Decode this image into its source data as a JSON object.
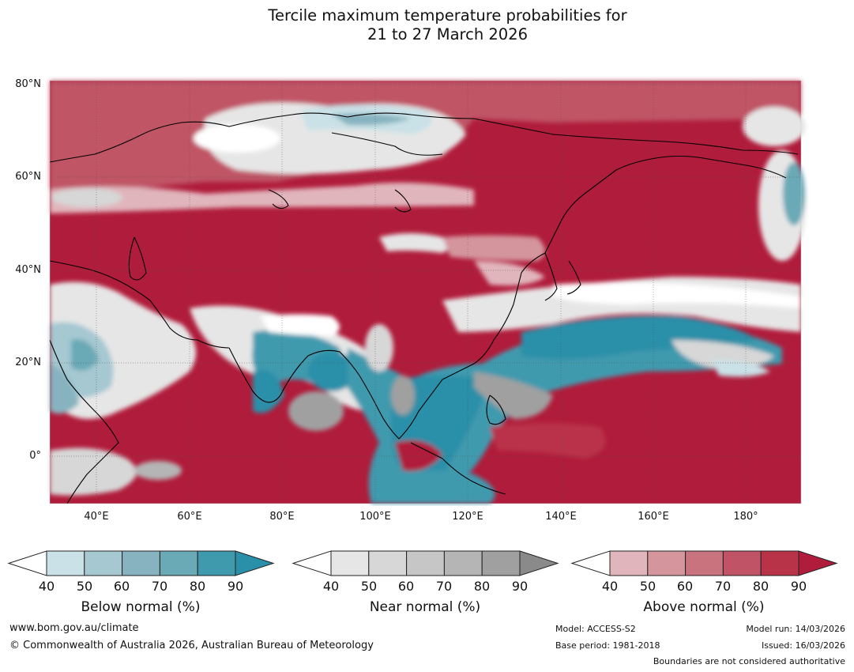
{
  "title": {
    "line1": "Tercile maximum temperature probabilities for",
    "line2": "21 to 27 March 2026"
  },
  "map": {
    "lat_labels": [
      "80°N",
      "60°N",
      "40°N",
      "20°N",
      "0°"
    ],
    "lon_labels": [
      "40°E",
      "60°E",
      "80°E",
      "100°E",
      "120°E",
      "140°E",
      "160°E",
      "180°"
    ],
    "colors": {
      "below": [
        "#c9e1e7",
        "#a5c8d1",
        "#87b3c0",
        "#6aa9b6",
        "#3f9aae",
        "#2a8fa8"
      ],
      "near": [
        "#e6e6e6",
        "#d7d7d7",
        "#c6c6c6",
        "#b5b5b5",
        "#a0a0a0",
        "#8a8a8a"
      ],
      "above": [
        "#e1b5bc",
        "#d4959d",
        "#c9737f",
        "#c05466",
        "#b93348",
        "#b01c3b"
      ]
    }
  },
  "colorbars": [
    {
      "name": "below",
      "label": "Below normal (%)",
      "ticks": [
        "40",
        "50",
        "60",
        "70",
        "80",
        "90"
      ]
    },
    {
      "name": "near",
      "label": "Near normal (%)",
      "ticks": [
        "40",
        "50",
        "60",
        "70",
        "80",
        "90"
      ]
    },
    {
      "name": "above",
      "label": "Above normal (%)",
      "ticks": [
        "40",
        "50",
        "60",
        "70",
        "80",
        "90"
      ]
    }
  ],
  "footer": {
    "website": "www.bom.gov.au/climate",
    "copyright": "© Commonwealth of Australia 2026, Australian Bureau of Meteorology",
    "model": "Model: ACCESS-S2",
    "base_period": "Base period: 1981-2018",
    "model_run": "Model run: 14/03/2026",
    "issued": "Issued: 16/03/2026",
    "boundaries": "Boundaries are not considered authoritative"
  }
}
